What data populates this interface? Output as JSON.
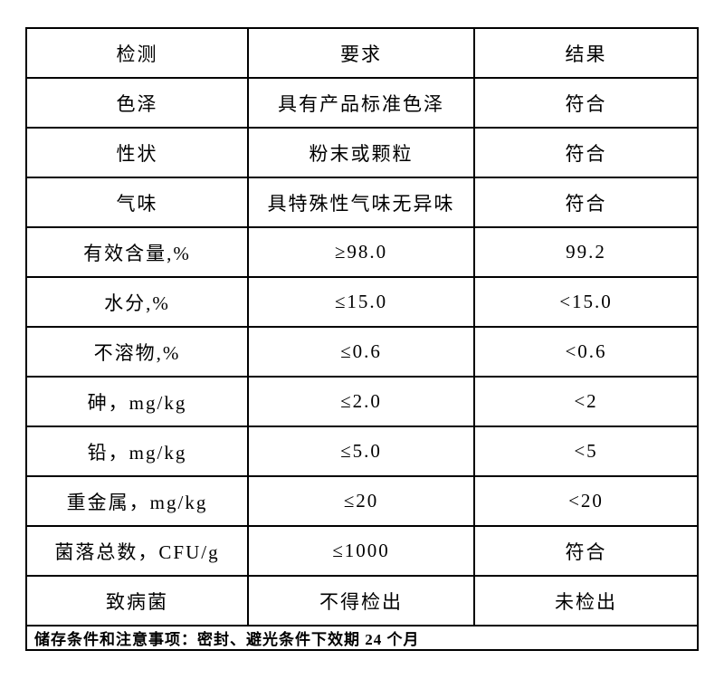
{
  "table": {
    "columns": [
      "检测",
      "要求",
      "结果"
    ],
    "rows": [
      {
        "test": "色泽",
        "requirement": "具有产品标准色泽",
        "result": "符合"
      },
      {
        "test": "性状",
        "requirement": "粉末或颗粒",
        "result": "符合"
      },
      {
        "test": "气味",
        "requirement": "具特殊性气味无异味",
        "result": "符合"
      },
      {
        "test": "有效含量,%",
        "requirement": "≥98.0",
        "result": "99.2"
      },
      {
        "test": "水分,%",
        "requirement": "≤15.0",
        "result": "<15.0"
      },
      {
        "test": "不溶物,%",
        "requirement": "≤0.6",
        "result": "<0.6"
      },
      {
        "test": "砷，mg/kg",
        "requirement": "≤2.0",
        "result": "<2"
      },
      {
        "test": "铅，mg/kg",
        "requirement": "≤5.0",
        "result": "<5"
      },
      {
        "test": "重金属，mg/kg",
        "requirement": "≤20",
        "result": "<20"
      },
      {
        "test": "菌落总数，CFU/g",
        "requirement": "≤1000",
        "result": "符合"
      },
      {
        "test": "致病菌",
        "requirement": "不得检出",
        "result": "未检出"
      }
    ],
    "footer": "储存条件和注意事项：密封、避光条件下效期 24 个月"
  }
}
